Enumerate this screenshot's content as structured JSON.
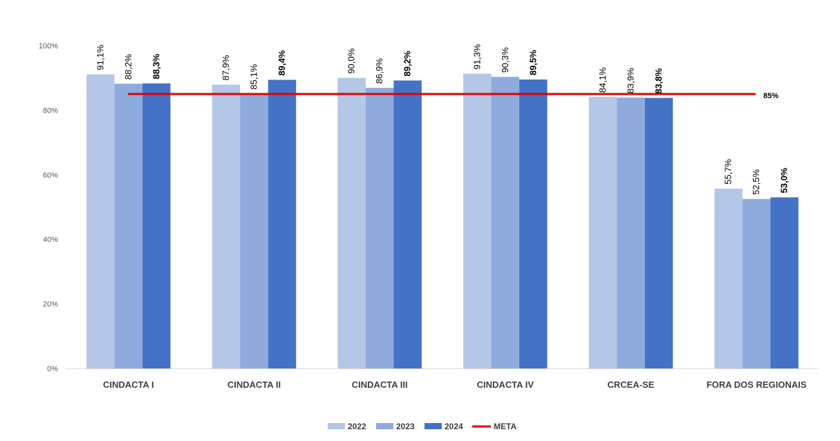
{
  "chart_data": {
    "type": "bar",
    "categories": [
      "CINDACTA I",
      "CINDACTA II",
      "CINDACTA III",
      "CINDACTA IV",
      "CRCEA-SE",
      "FORA DOS REGIONAIS"
    ],
    "series": [
      {
        "name": "2022",
        "values": [
          91.1,
          87.9,
          90.0,
          91.3,
          84.1,
          55.7
        ],
        "labels": [
          "91,1%",
          "87,9%",
          "90,0%",
          "91,3%",
          "84,1%",
          "55,7%"
        ],
        "color": "#b4c7e7",
        "bold_labels": false
      },
      {
        "name": "2023",
        "values": [
          88.2,
          85.1,
          86.9,
          90.3,
          83.9,
          52.5
        ],
        "labels": [
          "88,2%",
          "85,1%",
          "86,9%",
          "90,3%",
          "83,9%",
          "52,5%"
        ],
        "color": "#8faadc",
        "bold_labels": false
      },
      {
        "name": "2024",
        "values": [
          88.3,
          89.4,
          89.2,
          89.5,
          83.8,
          53.0
        ],
        "labels": [
          "88,3%",
          "89,4%",
          "89,2%",
          "89,5%",
          "83,8%",
          "53,0%"
        ],
        "color": "#4472c4",
        "bold_labels": true
      }
    ],
    "target_line": {
      "name": "META",
      "value": 85,
      "label": "85%",
      "color": "#e00000"
    },
    "y_ticks": [
      {
        "value": 0,
        "label": "0%"
      },
      {
        "value": 20,
        "label": "20%"
      },
      {
        "value": 40,
        "label": "40%"
      },
      {
        "value": 60,
        "label": "60%"
      },
      {
        "value": 80,
        "label": "80%"
      },
      {
        "value": 100,
        "label": "100%"
      }
    ],
    "ylim": [
      0,
      100
    ],
    "grid": false,
    "legend": "bottom",
    "legend_items": [
      {
        "name": "2022",
        "type": "box",
        "color": "#b4c7e7"
      },
      {
        "name": "2023",
        "type": "box",
        "color": "#8faadc"
      },
      {
        "name": "2024",
        "type": "box",
        "color": "#4472c4"
      },
      {
        "name": "META",
        "type": "line",
        "color": "#e00000"
      }
    ]
  }
}
